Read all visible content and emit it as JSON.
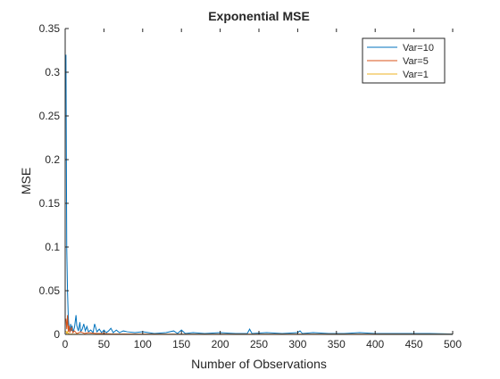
{
  "chart_data": {
    "type": "line",
    "title": "Exponential MSE",
    "xlabel": "Number of Observations",
    "ylabel": "MSE",
    "xlim": [
      0,
      500
    ],
    "ylim": [
      0,
      0.35
    ],
    "xticks": [
      0,
      50,
      100,
      150,
      200,
      250,
      300,
      350,
      400,
      450,
      500
    ],
    "xtick_labels": [
      "0",
      "50",
      "100",
      "150",
      "200",
      "250",
      "300",
      "350",
      "400",
      "450",
      "500"
    ],
    "yticks": [
      0,
      0.05,
      0.1,
      0.15,
      0.2,
      0.25,
      0.3,
      0.35
    ],
    "ytick_labels": [
      "0",
      "0.05",
      "0.1",
      "0.15",
      "0.2",
      "0.25",
      "0.3",
      "0.35"
    ],
    "grid": false,
    "legend_position": "top-right",
    "series": [
      {
        "name": "Var=10",
        "color": "#0072BD",
        "x": [
          1,
          2,
          3,
          4,
          5,
          6,
          7,
          8,
          9,
          10,
          12,
          14,
          15,
          17,
          19,
          20,
          22,
          24,
          26,
          28,
          30,
          33,
          36,
          38,
          41,
          44,
          47,
          50,
          53,
          56,
          59,
          62,
          66,
          70,
          75,
          80,
          90,
          100,
          115,
          130,
          140,
          145,
          150,
          155,
          165,
          180,
          200,
          220,
          235,
          238,
          241,
          260,
          280,
          300,
          303,
          306,
          320,
          340,
          360,
          380,
          400,
          430,
          450,
          470,
          500
        ],
        "y": [
          0.32,
          0.1,
          0.05,
          0.02,
          0.006,
          0.003,
          0.012,
          0.004,
          0.01,
          0.002,
          0.008,
          0.022,
          0.01,
          0.004,
          0.014,
          0.003,
          0.006,
          0.012,
          0.004,
          0.009,
          0.003,
          0.005,
          0.002,
          0.012,
          0.003,
          0.006,
          0.002,
          0.005,
          0.002,
          0.004,
          0.007,
          0.002,
          0.005,
          0.002,
          0.004,
          0.003,
          0.002,
          0.003,
          0.001,
          0.002,
          0.004,
          0.001,
          0.005,
          0.001,
          0.002,
          0.001,
          0.002,
          0.001,
          0.001,
          0.006,
          0.001,
          0.002,
          0.001,
          0.002,
          0.004,
          0.001,
          0.002,
          0.001,
          0.001,
          0.002,
          0.001,
          0.001,
          0.001,
          0.001,
          0.0005
        ]
      },
      {
        "name": "Var=5",
        "color": "#D95319",
        "x": [
          1,
          2,
          3,
          4,
          5,
          6,
          8,
          10,
          12,
          15,
          20,
          25,
          30,
          40,
          50,
          60,
          80,
          100,
          150,
          200,
          300,
          400,
          500
        ],
        "y": [
          0.018,
          0.006,
          0.022,
          0.003,
          0.01,
          0.002,
          0.008,
          0.002,
          0.004,
          0.001,
          0.003,
          0.001,
          0.002,
          0.001,
          0.001,
          0.0005,
          0.0005,
          0.0004,
          0.0003,
          0.0003,
          0.0002,
          0.0002,
          0.0001
        ]
      },
      {
        "name": "Var=1",
        "color": "#EDB120",
        "x": [
          1,
          2,
          3,
          4,
          5,
          6,
          8,
          10,
          15,
          20,
          30,
          50,
          100,
          200,
          300,
          400,
          500
        ],
        "y": [
          0.004,
          0.001,
          0.003,
          0.0005,
          0.001,
          0.0003,
          0.0005,
          0.0002,
          0.0002,
          0.0001,
          0.0001,
          0.0001,
          0.0001,
          0.0001,
          0.0001,
          0.0001,
          0.0001
        ]
      }
    ]
  }
}
